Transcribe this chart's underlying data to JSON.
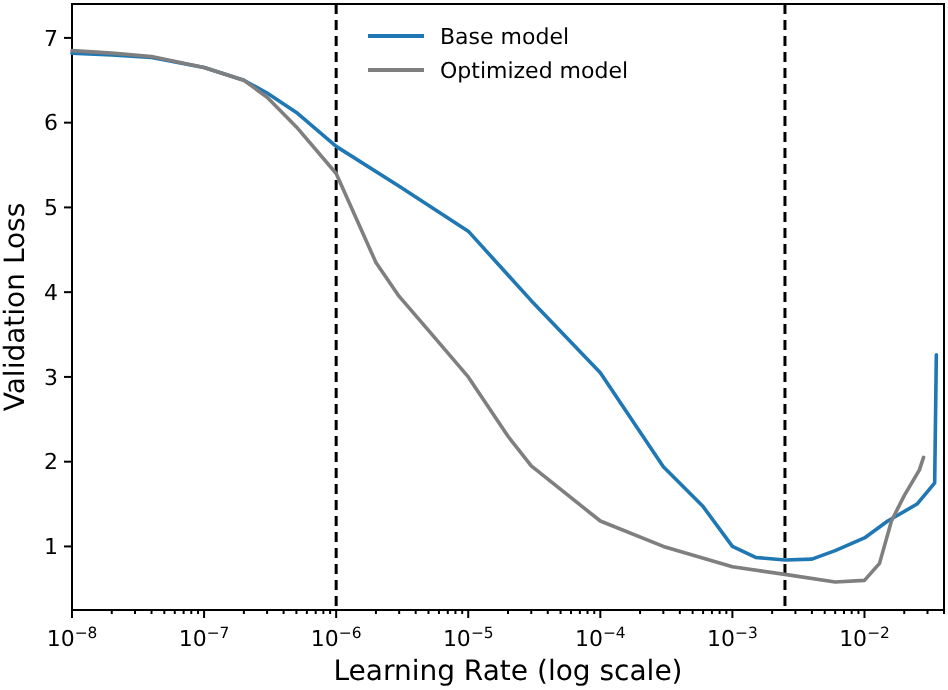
{
  "chart_data": {
    "type": "line",
    "xlabel": "Learning Rate (log scale)",
    "ylabel": "Validation Loss",
    "log": "x",
    "xlim": [
      1e-08,
      0.04
    ],
    "ylim": [
      0.25,
      7.4
    ],
    "xticks": [
      {
        "value": 1e-08,
        "label": "10$^{−8}$"
      },
      {
        "value": 1e-07,
        "label": "10$^{−7}$"
      },
      {
        "value": 1e-06,
        "label": "10$^{−6}$"
      },
      {
        "value": 1e-05,
        "label": "10$^{−5}$"
      },
      {
        "value": 0.0001,
        "label": "10$^{−4}$"
      },
      {
        "value": 0.001,
        "label": "10$^{−3}$"
      },
      {
        "value": 0.01,
        "label": "10$^{−2}$"
      },
      {
        "value": 2e-08,
        "label": null
      },
      {
        "value": 3e-08,
        "label": null
      },
      {
        "value": 4e-08,
        "label": null
      },
      {
        "value": 5e-08,
        "label": null
      },
      {
        "value": 6e-08,
        "label": null
      },
      {
        "value": 7e-08,
        "label": null
      },
      {
        "value": 8e-08,
        "label": null
      },
      {
        "value": 9e-08,
        "label": null
      },
      {
        "value": 2e-07,
        "label": null
      },
      {
        "value": 3e-07,
        "label": null
      },
      {
        "value": 4e-07,
        "label": null
      },
      {
        "value": 5e-07,
        "label": null
      },
      {
        "value": 6e-07,
        "label": null
      },
      {
        "value": 7e-07,
        "label": null
      },
      {
        "value": 8e-07,
        "label": null
      },
      {
        "value": 9e-07,
        "label": null
      },
      {
        "value": 2e-06,
        "label": null
      },
      {
        "value": 3e-06,
        "label": null
      },
      {
        "value": 4e-06,
        "label": null
      },
      {
        "value": 5e-06,
        "label": null
      },
      {
        "value": 6e-06,
        "label": null
      },
      {
        "value": 7e-06,
        "label": null
      },
      {
        "value": 8e-06,
        "label": null
      },
      {
        "value": 9e-06,
        "label": null
      },
      {
        "value": 2e-05,
        "label": null
      },
      {
        "value": 3e-05,
        "label": null
      },
      {
        "value": 4e-05,
        "label": null
      },
      {
        "value": 5e-05,
        "label": null
      },
      {
        "value": 6e-05,
        "label": null
      },
      {
        "value": 7e-05,
        "label": null
      },
      {
        "value": 8e-05,
        "label": null
      },
      {
        "value": 9e-05,
        "label": null
      },
      {
        "value": 0.0002,
        "label": null
      },
      {
        "value": 0.0003,
        "label": null
      },
      {
        "value": 0.0004,
        "label": null
      },
      {
        "value": 0.0005,
        "label": null
      },
      {
        "value": 0.0006,
        "label": null
      },
      {
        "value": 0.0007,
        "label": null
      },
      {
        "value": 0.0008,
        "label": null
      },
      {
        "value": 0.0009,
        "label": null
      },
      {
        "value": 0.002,
        "label": null
      },
      {
        "value": 0.003,
        "label": null
      },
      {
        "value": 0.004,
        "label": null
      },
      {
        "value": 0.005,
        "label": null
      },
      {
        "value": 0.006,
        "label": null
      },
      {
        "value": 0.007,
        "label": null
      },
      {
        "value": 0.008,
        "label": null
      },
      {
        "value": 0.009,
        "label": null
      },
      {
        "value": 0.02,
        "label": null
      },
      {
        "value": 0.03,
        "label": null
      },
      {
        "value": 0.04,
        "label": null
      }
    ],
    "yticks": [
      1,
      2,
      3,
      4,
      5,
      6,
      7
    ],
    "legend": "top",
    "grid": false,
    "ref_lines": [
      {
        "axis": "x",
        "value": 1e-06,
        "line_style": "dashed",
        "color": "#000000"
      },
      {
        "axis": "x",
        "value": 0.0025,
        "line_style": "dashed",
        "color": "#000000"
      }
    ],
    "series": [
      {
        "name": "Base model",
        "color": "#1f77b4",
        "x": [
          1e-08,
          2e-08,
          4e-08,
          1e-07,
          2e-07,
          3e-07,
          5e-07,
          1e-06,
          3e-06,
          1e-05,
          3e-05,
          0.0001,
          0.0003,
          0.0006,
          0.001,
          0.0015,
          0.0025,
          0.004,
          0.006,
          0.01,
          0.015,
          0.025,
          0.032,
          0.034,
          0.035
        ],
        "values": [
          6.82,
          6.8,
          6.77,
          6.65,
          6.5,
          6.35,
          6.12,
          5.72,
          5.25,
          4.72,
          3.9,
          3.05,
          1.94,
          1.47,
          1.0,
          0.87,
          0.84,
          0.85,
          0.95,
          1.1,
          1.3,
          1.5,
          1.7,
          1.75,
          3.26
        ]
      },
      {
        "name": "Optimized model",
        "color": "#7f7f7f",
        "x": [
          1e-08,
          2e-08,
          4e-08,
          1e-07,
          2e-07,
          3e-07,
          5e-07,
          1e-06,
          2e-06,
          3e-06,
          5e-06,
          1e-05,
          2e-05,
          3e-05,
          0.0001,
          0.0003,
          0.001,
          0.0025,
          0.006,
          0.01,
          0.013,
          0.016,
          0.02,
          0.026,
          0.028
        ],
        "values": [
          6.85,
          6.82,
          6.78,
          6.65,
          6.5,
          6.3,
          5.95,
          5.4,
          4.35,
          3.95,
          3.55,
          3.0,
          2.3,
          1.95,
          1.3,
          1.0,
          0.76,
          0.67,
          0.58,
          0.6,
          0.8,
          1.3,
          1.6,
          1.9,
          2.05
        ]
      }
    ]
  }
}
